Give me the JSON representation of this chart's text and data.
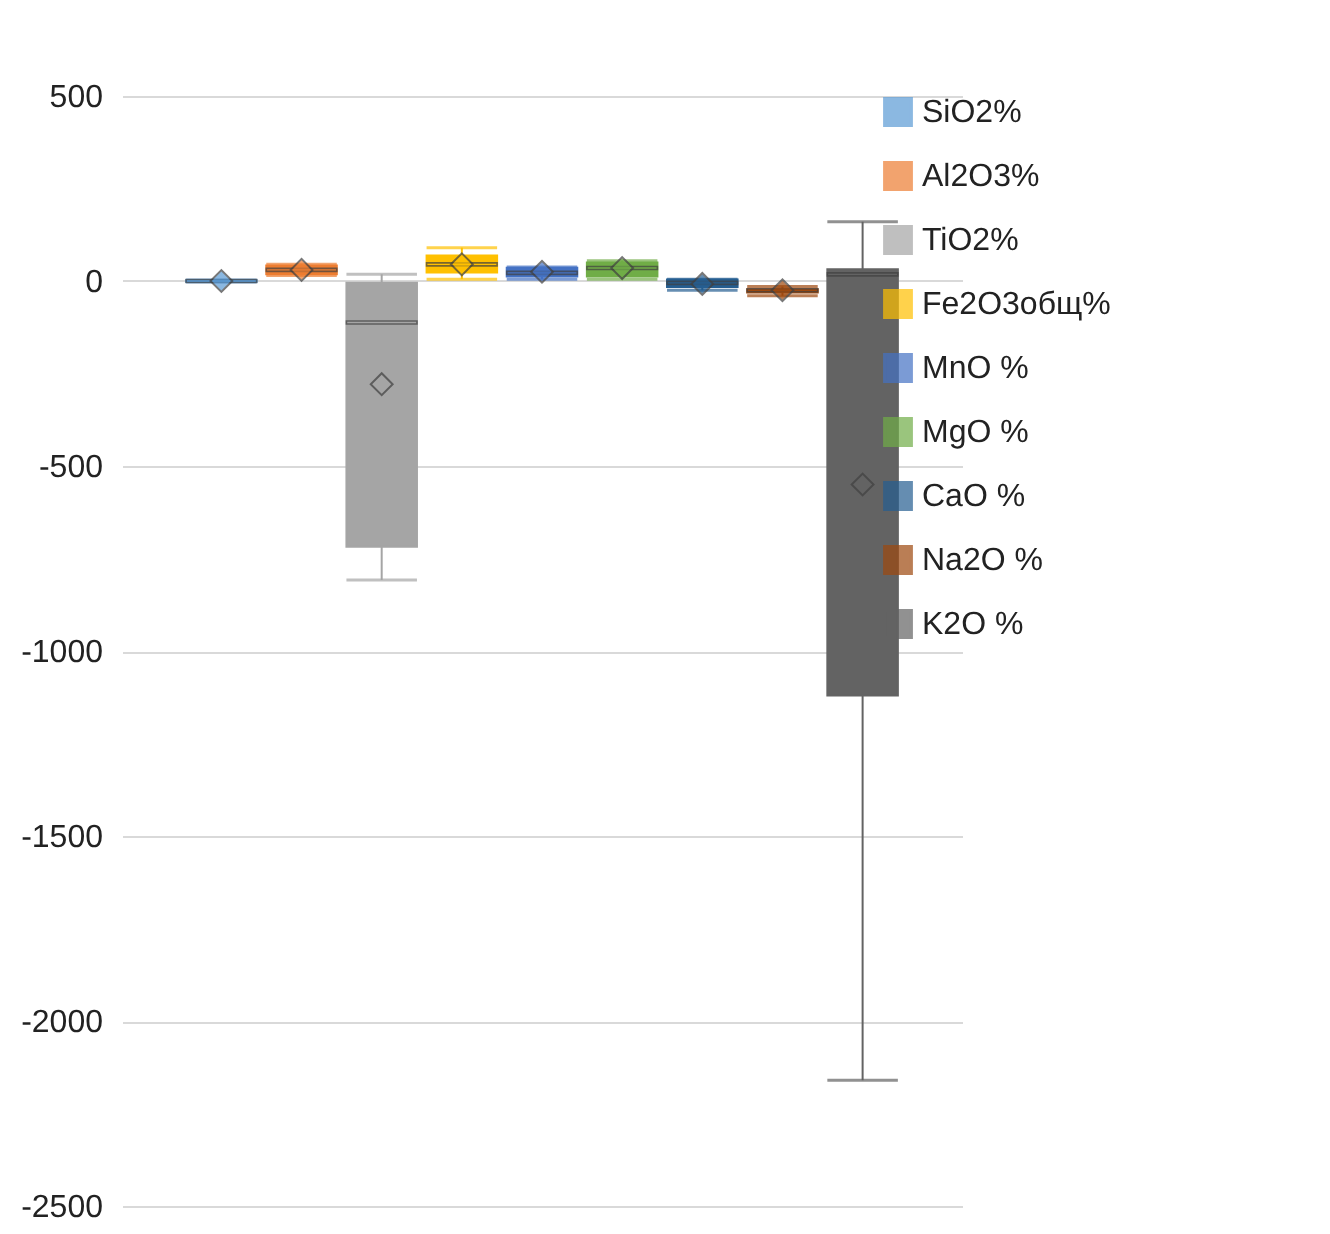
{
  "chart_data": {
    "type": "box",
    "categories": [
      null
    ],
    "ylim": [
      -2500,
      500
    ],
    "yticks": [
      -2500,
      -2000,
      -1500,
      -1000,
      -500,
      0,
      500
    ],
    "grid": "y",
    "legend": "right",
    "series": [
      {
        "name": "SiO2%",
        "color": "#5b9bd5",
        "boxes": [
          {
            "low": -3,
            "q1": -2,
            "median": 0,
            "q3": 2,
            "high": 3,
            "mean": 0
          }
        ]
      },
      {
        "name": "Al2O3%",
        "color": "#ed7d31",
        "boxes": [
          {
            "low": 15,
            "q1": 18,
            "median": 30,
            "q3": 42,
            "high": 45,
            "mean": 30
          }
        ]
      },
      {
        "name": "TiO2%",
        "color": "#a5a5a5",
        "boxes": [
          {
            "low": -808,
            "q1": -718,
            "median": -112,
            "q3": -5,
            "high": 18,
            "mean": -279
          }
        ]
      },
      {
        "name": "Fe2O3общ%",
        "color": "#ffc000",
        "boxes": [
          {
            "low": 5,
            "q1": 23,
            "median": 45,
            "q3": 69,
            "high": 90,
            "mean": 45
          }
        ]
      },
      {
        "name": "MnO %",
        "color": "#4472c4",
        "boxes": [
          {
            "low": 5,
            "q1": 12,
            "median": 22,
            "q3": 36,
            "high": 38,
            "mean": 25
          }
        ]
      },
      {
        "name": "MgO %",
        "color": "#70ad47",
        "boxes": [
          {
            "low": 5,
            "q1": 12,
            "median": 35,
            "q3": 50,
            "high": 55,
            "mean": 35
          }
        ]
      },
      {
        "name": "CaO %",
        "color": "#255e91",
        "boxes": [
          {
            "low": -25,
            "q1": -16,
            "median": -5,
            "q3": 4,
            "high": 5,
            "mean": -8
          }
        ]
      },
      {
        "name": "Na2O %",
        "color": "#9e480e",
        "boxes": [
          {
            "low": -40,
            "q1": -31,
            "median": -25,
            "q3": -22,
            "high": -15,
            "mean": -25
          }
        ]
      },
      {
        "name": "K2O %",
        "color": "#636363",
        "boxes": [
          {
            "low": -2160,
            "q1": -1120,
            "median": 18,
            "q3": 32,
            "high": 160,
            "mean": -550
          }
        ]
      }
    ]
  }
}
